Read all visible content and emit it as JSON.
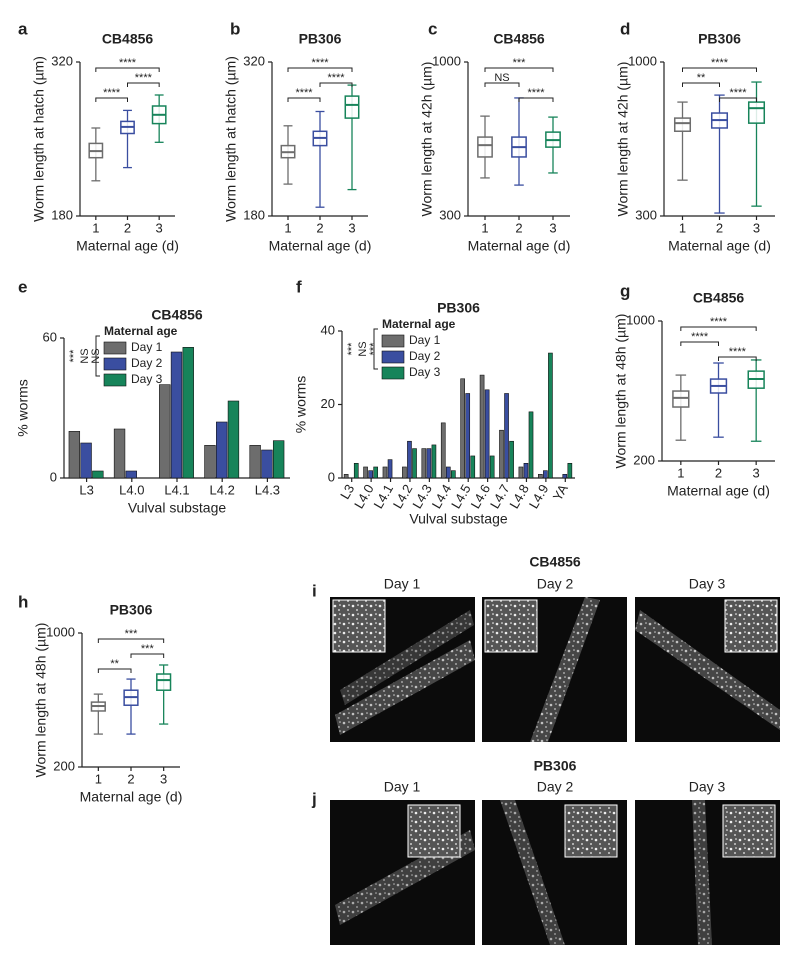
{
  "chart_data": [
    {
      "panel": "a",
      "type": "box",
      "title": "CB4856",
      "y_label": "Worm length at hatch (µm)",
      "x_label": "Maternal age (d)",
      "categories": [
        "1",
        "2",
        "3"
      ],
      "colors": [
        "#6d6d6d",
        "#3a4ea0",
        "#17845a"
      ],
      "log": false,
      "ylim": [
        180,
        320
      ],
      "yticks": [
        180,
        320
      ],
      "boxes": [
        {
          "min": 212,
          "q1": 233,
          "median": 239,
          "q3": 246,
          "max": 260
        },
        {
          "min": 224,
          "q1": 255,
          "median": 261,
          "q3": 266,
          "max": 276
        },
        {
          "min": 247,
          "q1": 264,
          "median": 272,
          "q3": 280,
          "max": 290
        }
      ],
      "comparisons": [
        {
          "groups": [
            "1",
            "3"
          ],
          "label": "****"
        },
        {
          "groups": [
            "2",
            "3"
          ],
          "label": "****"
        },
        {
          "groups": [
            "1",
            "2"
          ],
          "label": "****"
        }
      ]
    },
    {
      "panel": "b",
      "type": "box",
      "title": "PB306",
      "y_label": "Worm length at hatch (µm)",
      "x_label": "Maternal age (d)",
      "categories": [
        "1",
        "2",
        "3"
      ],
      "colors": [
        "#6d6d6d",
        "#3a4ea0",
        "#17845a"
      ],
      "log": false,
      "ylim": [
        180,
        320
      ],
      "yticks": [
        180,
        320
      ],
      "boxes": [
        {
          "min": 209,
          "q1": 233,
          "median": 238,
          "q3": 244,
          "max": 262
        },
        {
          "min": 188,
          "q1": 244,
          "median": 251,
          "q3": 257,
          "max": 275
        },
        {
          "min": 204,
          "q1": 269,
          "median": 281,
          "q3": 289,
          "max": 299
        }
      ],
      "comparisons": [
        {
          "groups": [
            "1",
            "3"
          ],
          "label": "****"
        },
        {
          "groups": [
            "2",
            "3"
          ],
          "label": "****"
        },
        {
          "groups": [
            "1",
            "2"
          ],
          "label": "****"
        }
      ]
    },
    {
      "panel": "c",
      "type": "box",
      "title": "CB4856",
      "y_label": "Worm length at 42h (µm)",
      "x_label": "Maternal age (d)",
      "categories": [
        "1",
        "2",
        "3"
      ],
      "colors": [
        "#6d6d6d",
        "#3a4ea0",
        "#17845a"
      ],
      "log": true,
      "ylim": [
        300,
        1000
      ],
      "yticks": [
        300,
        1000
      ],
      "boxes": [
        {
          "min": 404,
          "q1": 476,
          "median": 522,
          "q3": 556,
          "max": 655
        },
        {
          "min": 382,
          "q1": 476,
          "median": 514,
          "q3": 556,
          "max": 755
        },
        {
          "min": 420,
          "q1": 514,
          "median": 543,
          "q3": 578,
          "max": 650
        }
      ],
      "comparisons": [
        {
          "groups": [
            "1",
            "3"
          ],
          "label": "***"
        },
        {
          "groups": [
            "1",
            "2"
          ],
          "label": "NS"
        },
        {
          "groups": [
            "2",
            "3"
          ],
          "label": "****"
        }
      ]
    },
    {
      "panel": "d",
      "type": "box",
      "title": "PB306",
      "y_label": "Worm length at 42h (µm)",
      "x_label": "Maternal age (d)",
      "categories": [
        "1",
        "2",
        "3"
      ],
      "colors": [
        "#6d6d6d",
        "#3a4ea0",
        "#17845a"
      ],
      "log": true,
      "ylim": [
        300,
        1000
      ],
      "yticks": [
        300,
        1000
      ],
      "boxes": [
        {
          "min": 397,
          "q1": 582,
          "median": 620,
          "q3": 645,
          "max": 731
        },
        {
          "min": 307,
          "q1": 597,
          "median": 635,
          "q3": 671,
          "max": 772
        },
        {
          "min": 324,
          "q1": 620,
          "median": 697,
          "q3": 731,
          "max": 855
        }
      ],
      "comparisons": [
        {
          "groups": [
            "1",
            "3"
          ],
          "label": "****"
        },
        {
          "groups": [
            "1",
            "2"
          ],
          "label": "**"
        },
        {
          "groups": [
            "2",
            "3"
          ],
          "label": "****"
        }
      ]
    },
    {
      "panel": "e",
      "type": "bar",
      "title": "CB4856",
      "y_label": "% worms",
      "x_label": "Vulval substage",
      "legend_title": "Maternal age",
      "categories": [
        "L3",
        "L4.0",
        "L4.1",
        "L4.2",
        "L4.3"
      ],
      "ylim": [
        0,
        60
      ],
      "yticks": [
        0,
        60
      ],
      "series": [
        {
          "name": "Day 1",
          "color": "#6d6d6d",
          "values": [
            20,
            21,
            40,
            14,
            14
          ]
        },
        {
          "name": "Day 2",
          "color": "#3a4ea0",
          "values": [
            15,
            3,
            54,
            24,
            12
          ]
        },
        {
          "name": "Day 3",
          "color": "#17845a",
          "values": [
            3,
            0,
            56,
            33,
            16
          ]
        }
      ],
      "significance": [
        "***",
        "NS",
        "NS"
      ]
    },
    {
      "panel": "f",
      "type": "bar",
      "title": "PB306",
      "y_label": "% worms",
      "x_label": "Vulval substage",
      "legend_title": "Maternal age",
      "categories": [
        "L3",
        "L4.0",
        "L4.1",
        "L4.2",
        "L4.3",
        "L4.4",
        "L4.5",
        "L4.6",
        "L4.7",
        "L4.8",
        "L4.9",
        "YA"
      ],
      "ylim": [
        0,
        40
      ],
      "yticks": [
        0,
        20,
        40
      ],
      "series": [
        {
          "name": "Day 1",
          "color": "#6d6d6d",
          "values": [
            1,
            3,
            3,
            3,
            8,
            15,
            27,
            28,
            13,
            3,
            1,
            0
          ]
        },
        {
          "name": "Day 2",
          "color": "#3a4ea0",
          "values": [
            0,
            2,
            5,
            10,
            8,
            3,
            23,
            24,
            23,
            4,
            2,
            1
          ]
        },
        {
          "name": "Day 3",
          "color": "#17845a",
          "values": [
            4,
            3,
            0,
            8,
            9,
            2,
            6,
            6,
            10,
            18,
            34,
            4
          ]
        }
      ],
      "significance": [
        "***",
        "NS",
        "***"
      ]
    },
    {
      "panel": "g",
      "type": "box",
      "title": "CB4856",
      "y_label": "Worm length at 48h (µm)",
      "x_label": "Maternal age (d)",
      "categories": [
        "1",
        "2",
        "3"
      ],
      "colors": [
        "#6d6d6d",
        "#3a4ea0",
        "#17845a"
      ],
      "log": true,
      "ylim": [
        200,
        1000
      ],
      "yticks": [
        200,
        1000
      ],
      "boxes": [
        {
          "min": 254,
          "q1": 372,
          "median": 413,
          "q3": 447,
          "max": 537
        },
        {
          "min": 263,
          "q1": 437,
          "median": 474,
          "q3": 513,
          "max": 617
        },
        {
          "min": 251,
          "q1": 462,
          "median": 513,
          "q3": 562,
          "max": 639
        }
      ],
      "comparisons": [
        {
          "groups": [
            "1",
            "3"
          ],
          "label": "****"
        },
        {
          "groups": [
            "1",
            "2"
          ],
          "label": "****"
        },
        {
          "groups": [
            "2",
            "3"
          ],
          "label": "****"
        }
      ]
    },
    {
      "panel": "h",
      "type": "box",
      "title": "PB306",
      "y_label": "Worm length at 48h (µm)",
      "x_label": "Maternal age (d)",
      "categories": [
        "1",
        "2",
        "3"
      ],
      "colors": [
        "#6d6d6d",
        "#3a4ea0",
        "#17845a"
      ],
      "log": true,
      "ylim": [
        200,
        1000
      ],
      "yticks": [
        200,
        1000
      ],
      "boxes": [
        {
          "min": 297,
          "q1": 392,
          "median": 416,
          "q3": 436,
          "max": 480
        },
        {
          "min": 297,
          "q1": 420,
          "median": 463,
          "q3": 503,
          "max": 575
        },
        {
          "min": 335,
          "q1": 503,
          "median": 568,
          "q3": 611,
          "max": 681
        }
      ],
      "comparisons": [
        {
          "groups": [
            "1",
            "3"
          ],
          "label": "***"
        },
        {
          "groups": [
            "2",
            "3"
          ],
          "label": "***"
        },
        {
          "groups": [
            "1",
            "2"
          ],
          "label": "**"
        }
      ]
    }
  ],
  "image_panels": [
    {
      "panel": "i",
      "title": "CB4856",
      "labels": [
        "Day 1",
        "Day 2",
        "Day 3"
      ]
    },
    {
      "panel": "j",
      "title": "PB306",
      "labels": [
        "Day 1",
        "Day 2",
        "Day 3"
      ]
    }
  ]
}
